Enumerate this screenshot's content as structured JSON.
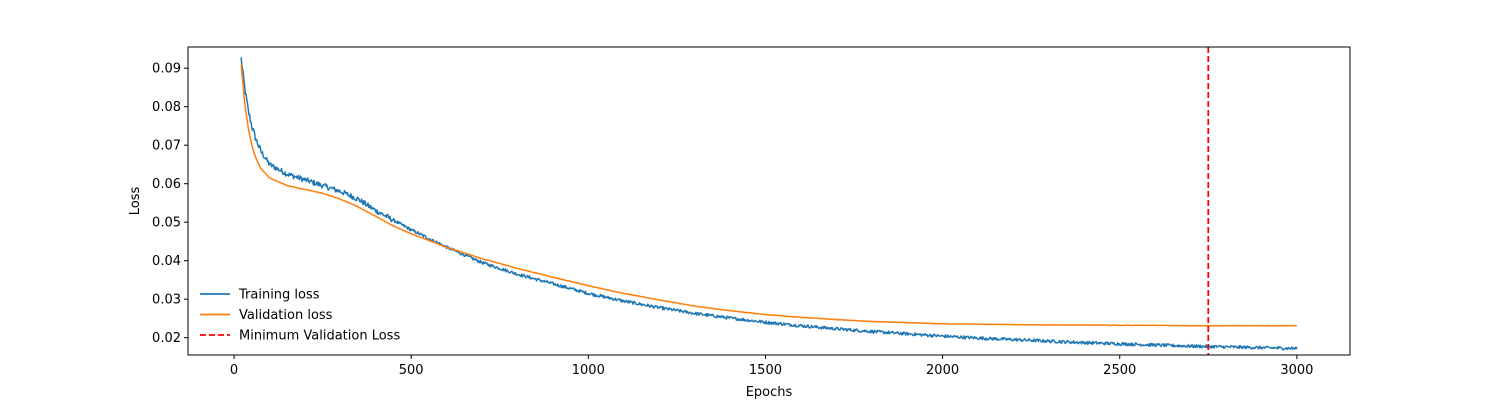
{
  "chart_data": {
    "type": "line",
    "title": "",
    "xlabel": "Epochs",
    "ylabel": "Loss",
    "xlim": [
      -130,
      3150
    ],
    "ylim": [
      0.0155,
      0.0955
    ],
    "xticks": [
      0,
      500,
      1000,
      1500,
      2000,
      2500,
      3000
    ],
    "yticks": [
      0.02,
      0.03,
      0.04,
      0.05,
      0.06,
      0.07,
      0.08,
      0.09
    ],
    "ytick_labels": [
      "0.02",
      "0.03",
      "0.04",
      "0.05",
      "0.06",
      "0.07",
      "0.08",
      "0.09"
    ],
    "grid": false,
    "legend_position": "lower-left",
    "series": [
      {
        "name": "Training loss",
        "color": "#1f77b4",
        "style": "solid",
        "noisy": true,
        "x": [
          20,
          30,
          40,
          50,
          60,
          75,
          100,
          150,
          200,
          250,
          300,
          350,
          400,
          450,
          500,
          600,
          700,
          800,
          900,
          1000,
          1100,
          1200,
          1300,
          1400,
          1500,
          1600,
          1700,
          1800,
          1900,
          2000,
          2100,
          2200,
          2300,
          2400,
          2500,
          2600,
          2700,
          2800,
          2900,
          3000
        ],
        "y": [
          0.0925,
          0.085,
          0.079,
          0.075,
          0.072,
          0.0685,
          0.065,
          0.0625,
          0.061,
          0.0595,
          0.058,
          0.056,
          0.053,
          0.0505,
          0.048,
          0.0435,
          0.0395,
          0.0365,
          0.034,
          0.0315,
          0.0295,
          0.0278,
          0.0263,
          0.0251,
          0.024,
          0.0231,
          0.0223,
          0.0216,
          0.021,
          0.0204,
          0.0199,
          0.0195,
          0.0191,
          0.0187,
          0.0184,
          0.0181,
          0.0178,
          0.0176,
          0.0174,
          0.0172
        ]
      },
      {
        "name": "Validation loss",
        "color": "#ff7f0e",
        "style": "solid",
        "noisy": false,
        "x": [
          20,
          30,
          40,
          50,
          60,
          75,
          100,
          150,
          200,
          250,
          300,
          350,
          400,
          450,
          500,
          600,
          700,
          800,
          900,
          1000,
          1100,
          1200,
          1300,
          1400,
          1500,
          1600,
          1700,
          1800,
          1900,
          2000,
          2100,
          2200,
          2300,
          2400,
          2500,
          2600,
          2700,
          2800,
          2900,
          3000
        ],
        "y": [
          0.091,
          0.081,
          0.0745,
          0.07,
          0.067,
          0.064,
          0.0615,
          0.0595,
          0.0585,
          0.0575,
          0.056,
          0.054,
          0.0515,
          0.049,
          0.047,
          0.0435,
          0.0405,
          0.038,
          0.0357,
          0.0335,
          0.0315,
          0.0298,
          0.0282,
          0.027,
          0.026,
          0.0253,
          0.0247,
          0.0242,
          0.0239,
          0.0236,
          0.0235,
          0.0234,
          0.0233,
          0.0233,
          0.0232,
          0.0232,
          0.0231,
          0.0231,
          0.0231,
          0.0231
        ]
      },
      {
        "name": "Minimum Validation Loss",
        "color": "#ff0000",
        "style": "dashed",
        "type": "vline",
        "x_value": 2750
      }
    ]
  }
}
